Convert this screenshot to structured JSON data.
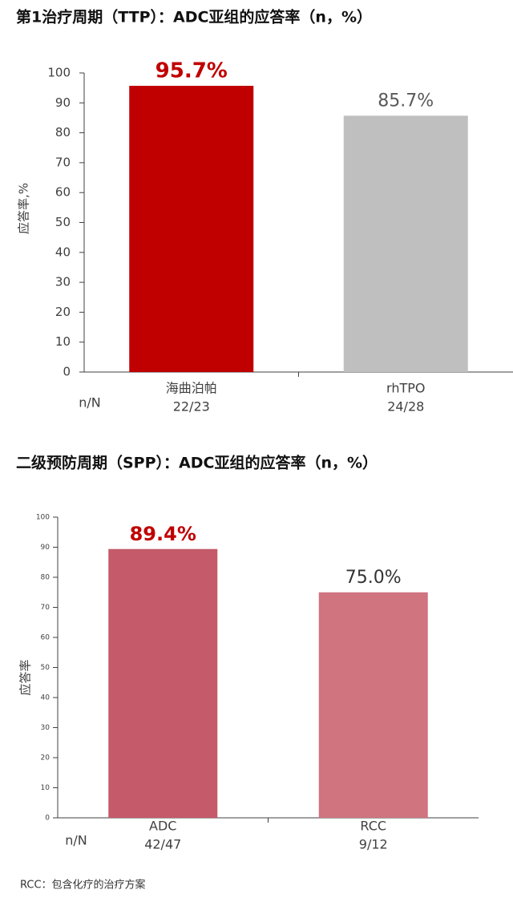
{
  "chart_data": [
    {
      "type": "bar",
      "title": "第1治疗周期（TTP）：ADC亚组的应答率（n，%）",
      "y_label": "应答率,%",
      "categories": [
        "海曲泊帕",
        "rhTPO"
      ],
      "n_title": "n/N",
      "n_labels": [
        "22/23",
        "24/28"
      ],
      "values": [
        95.7,
        85.7
      ],
      "value_labels": [
        "95.7%",
        "85.7%"
      ],
      "colors": [
        "#c00000",
        "#bfbfbf"
      ],
      "value_label_colors": [
        "#c00000",
        "#595959"
      ],
      "ylim": [
        0,
        100
      ],
      "yticks": [
        0,
        10,
        20,
        30,
        40,
        50,
        60,
        70,
        80,
        90,
        100
      ]
    },
    {
      "type": "bar",
      "title": "二级预防周期（SPP）：ADC亚组的应答率（n，%）",
      "y_label": "应答率",
      "categories": [
        "ADC",
        "RCC"
      ],
      "n_title": "n/N",
      "n_labels": [
        "42/47",
        "9/12"
      ],
      "values": [
        89.4,
        75.0
      ],
      "value_labels": [
        "89.4%",
        "75.0%"
      ],
      "colors": [
        "#c55a6a",
        "#d07480"
      ],
      "value_label_colors": [
        "#c00000",
        "#333333"
      ],
      "ylim": [
        0,
        100
      ],
      "yticks": [
        0,
        10,
        20,
        30,
        40,
        50,
        60,
        70,
        80,
        90,
        100
      ]
    }
  ],
  "footnote": "RCC：包含化疗的治疗方案"
}
